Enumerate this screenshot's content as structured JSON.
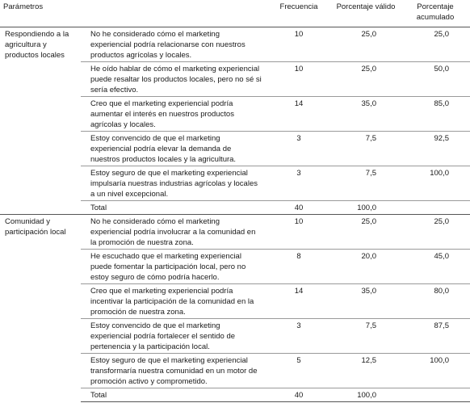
{
  "headers": {
    "parametros": "Parámetros",
    "frecuencia": "Frecuencia",
    "porcentaje_valido": "Porcentaje válido",
    "porcentaje_acumulado": "Porcentaje acumulado"
  },
  "groups": [
    {
      "name": "Respondiendo a la agricultura y productos locales",
      "rows": [
        {
          "text": "No he considerado cómo el marketing experiencial podría relacionarse con nuestros productos agrícolas y locales.",
          "freq": "10",
          "valid": "25,0",
          "cum": "25,0"
        },
        {
          "text": "He oído hablar de cómo el marketing experiencial puede resaltar los productos locales, pero no sé si sería efectivo.",
          "freq": "10",
          "valid": "25,0",
          "cum": "50,0"
        },
        {
          "text": "Creo que el marketing experiencial podría aumentar el interés en nuestros productos agrícolas y locales.",
          "freq": "14",
          "valid": "35,0",
          "cum": "85,0"
        },
        {
          "text": "Estoy convencido de que el marketing experiencial podría elevar la demanda de nuestros productos locales y la agricultura.",
          "freq": "3",
          "valid": "7,5",
          "cum": "92,5"
        },
        {
          "text": "Estoy seguro de que el marketing experiencial impulsaría nuestras industrias agrícolas y locales a un nivel excepcional.",
          "freq": "3",
          "valid": "7,5",
          "cum": "100,0"
        }
      ],
      "total": {
        "label": "Total",
        "freq": "40",
        "valid": "100,0"
      }
    },
    {
      "name": "Comunidad y participación local",
      "rows": [
        {
          "text": "No he considerado cómo el marketing experiencial podría involucrar a la comunidad en la promoción de nuestra zona.",
          "freq": "10",
          "valid": "25,0",
          "cum": "25,0"
        },
        {
          "text": "He escuchado que el marketing experiencial puede fomentar la participación local, pero no estoy seguro de cómo podría hacerlo.",
          "freq": "8",
          "valid": "20,0",
          "cum": "45,0"
        },
        {
          "text": "Creo que el marketing experiencial podría incentivar la participación de la comunidad en la promoción de nuestra zona.",
          "freq": "14",
          "valid": "35,0",
          "cum": "80,0"
        },
        {
          "text": "Estoy convencido de que el marketing experiencial podría fortalecer el sentido de pertenencia y la participación local.",
          "freq": "3",
          "valid": "7,5",
          "cum": "87,5"
        },
        {
          "text": "Estoy seguro de que el marketing experiencial transformaría nuestra comunidad en un motor de promoción activo y comprometido.",
          "freq": "5",
          "valid": "12,5",
          "cum": "100,0"
        }
      ],
      "total": {
        "label": "Total",
        "freq": "40",
        "valid": "100,0"
      }
    }
  ]
}
